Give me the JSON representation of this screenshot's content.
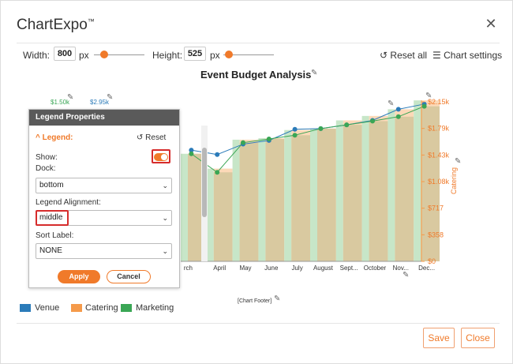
{
  "app": {
    "title": "ChartExpo",
    "trademark": "™"
  },
  "toolbar": {
    "width_label": "Width:",
    "width_value": "800",
    "width_unit": "px",
    "height_label": "Height:",
    "height_value": "525",
    "height_unit": "px",
    "reset_all": "Reset all",
    "chart_settings": "Chart settings"
  },
  "chart": {
    "title": "Event Budget Analysis",
    "footer": "[Chart Footer]",
    "left_axis_labels": [
      "$1.50k",
      "$2.95k"
    ],
    "right_axis_title": "Catering"
  },
  "legend": {
    "items": [
      {
        "label": "Venue",
        "color": "#2b7bb9"
      },
      {
        "label": "Catering",
        "color": "#f59a4a"
      },
      {
        "label": "Marketing",
        "color": "#3aa655"
      }
    ]
  },
  "panel": {
    "header": "Legend Properties",
    "section": "Legend:",
    "reset": "Reset",
    "show_label": "Show:",
    "dock_label": "Dock:",
    "dock_value": "bottom",
    "alignment_label": "Legend Alignment:",
    "alignment_value": "middle",
    "sort_label": "Sort Label:",
    "sort_value": "NONE",
    "apply": "Apply",
    "cancel": "Cancel"
  },
  "buttons": {
    "save": "Save",
    "close": "Close"
  },
  "chart_data": {
    "type": "bar",
    "title": "Event Budget Analysis",
    "categories": [
      "March",
      "April",
      "May",
      "June",
      "July",
      "August",
      "September",
      "October",
      "November",
      "December"
    ],
    "tick_labels": [
      "rch",
      "April",
      "May",
      "June",
      "July",
      "August",
      "Sept...",
      "October",
      "Nov...",
      "Dec..."
    ],
    "right_axis": {
      "title": "Catering",
      "ticks": [
        "$0",
        "$358",
        "$717",
        "$1.08k",
        "$1.43k",
        "$1.79k",
        "$2.15k"
      ],
      "ylim": [
        0,
        2150
      ]
    },
    "series": [
      {
        "name": "Catering",
        "type": "bar",
        "color": "#fcd9b8",
        "values": [
          1450,
          1250,
          1640,
          1660,
          1770,
          1790,
          1900,
          1960,
          2050,
          2170
        ]
      },
      {
        "name": "Marketing",
        "type": "bar-line",
        "color": "#3aa655",
        "values": [
          1450,
          1200,
          1600,
          1650,
          1700,
          1790,
          1840,
          1890,
          1950,
          2090
        ]
      },
      {
        "name": "Venue",
        "type": "line",
        "color": "#2b7bb9",
        "values": [
          1500,
          1440,
          1580,
          1630,
          1780,
          1790,
          1840,
          1900,
          2050,
          2120
        ]
      }
    ]
  },
  "colors": {
    "accent": "#f07a2a",
    "venue": "#2b7bb9",
    "catering": "#f59a4a",
    "marketing": "#3aa655"
  }
}
